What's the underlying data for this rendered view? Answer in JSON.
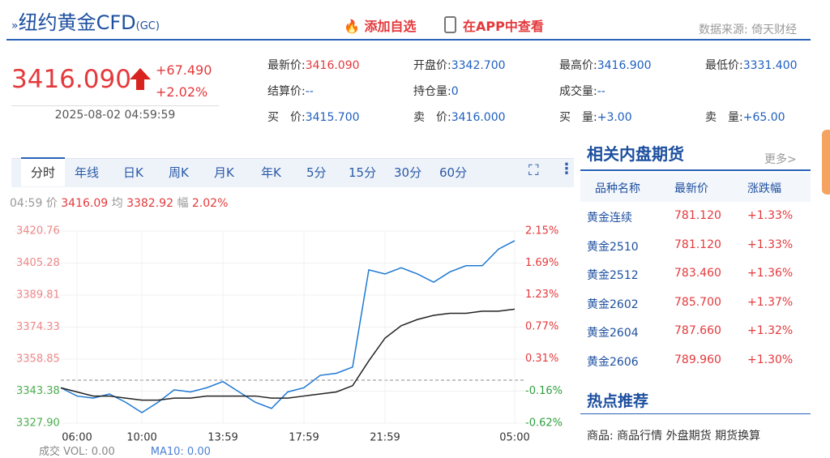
{
  "header": {
    "title": "纽约黄金CFD",
    "code": "(GC)",
    "add_watch": "添加自选",
    "app_view": "在APP中查看",
    "source": "数据来源: 倚天财经"
  },
  "quote": {
    "price": "3416.090",
    "change": "+67.490",
    "change_pct": "+2.02%",
    "time": "2025-08-02 04:59:59"
  },
  "fields": [
    [
      "最新价:",
      "3416.090"
    ],
    [
      "开盘价:",
      "3342.700"
    ],
    [
      "最高价:",
      "3416.900"
    ],
    [
      "最低价:",
      "3331.400"
    ],
    [
      "结算价:",
      "--"
    ],
    [
      "持仓量:",
      "0"
    ],
    [
      "成交量:",
      "--"
    ],
    [
      "买　价:",
      "3415.700"
    ],
    [
      "卖　价:",
      "3416.000"
    ],
    [
      "买　量:",
      "+3.00"
    ],
    [
      "卖　量:",
      "+65.00"
    ]
  ],
  "tabs": [
    "分时",
    "年线",
    "日K",
    "周K",
    "月K",
    "年K",
    "5分",
    "15分",
    "30分",
    "60分"
  ],
  "info": {
    "time": "04:59",
    "price_label": "价",
    "price": "3416.09",
    "avg_label": "均",
    "avg": "3382.92",
    "amp_label": "幅",
    "amp": "2.02%"
  },
  "chart_data": {
    "type": "line",
    "categories": [
      null,
      "06:00",
      null,
      null,
      null,
      "10:00",
      null,
      null,
      null,
      null,
      "13:59",
      null,
      null,
      null,
      null,
      "17:59",
      null,
      null,
      null,
      null,
      "21:59",
      null,
      null,
      null,
      null,
      null,
      null,
      null,
      "05:00"
    ],
    "series": [
      {
        "color": "#1e78d2",
        "values": [
          3345,
          3341,
          3340,
          3342,
          3338,
          3333,
          3338,
          3344,
          3343,
          3345,
          3348,
          3343,
          3338,
          3335,
          3343,
          3345,
          3351,
          3352,
          3355,
          3402,
          3400,
          3403,
          3400,
          3396,
          3401,
          3404,
          3404,
          3412,
          3416.09
        ]
      },
      {
        "color": "#222222",
        "values": [
          3345,
          3343,
          3341,
          3341,
          3340,
          3339,
          3339,
          3340,
          3340,
          3341,
          3341,
          3341,
          3341,
          3340,
          3340,
          3341,
          3342,
          3343,
          3346,
          3358,
          3369,
          3375,
          3378,
          3380,
          3381,
          3381,
          3382,
          3382,
          3383
        ]
      }
    ],
    "ylim": [
      3327.9,
      3420.76
    ],
    "yticks": [
      3420.76,
      3405.28,
      3389.81,
      3374.33,
      3358.85,
      3343.38,
      {
        "value": 3327.9,
        "label": "3327.90"
      }
    ],
    "y2lim": [
      -0.62,
      2.15
    ],
    "y2ticks": [
      {
        "value": 2.15,
        "label": "2.15%"
      },
      {
        "value": 1.69,
        "label": "1.69%"
      },
      {
        "value": 1.23,
        "label": "1.23%"
      },
      {
        "value": 0.77,
        "label": "0.77%"
      },
      {
        "value": 0.31,
        "label": "0.31%"
      },
      {
        "value": -0.16,
        "label": "-0.16%"
      },
      {
        "value": -0.62,
        "label": "-0.62%"
      }
    ],
    "grid": true
  },
  "volume": {
    "label": "成交",
    "vol": "VOL: 0.00",
    "ma": "MA10: 0.00"
  },
  "related": {
    "title": "相关内盘期货",
    "more": "更多>",
    "columns": [
      "品种名称",
      "最新价",
      "涨跌幅"
    ],
    "rows": [
      [
        "黄金连续",
        "781.120",
        "+1.33%"
      ],
      [
        "黄金2510",
        "781.120",
        "+1.33%"
      ],
      [
        "黄金2512",
        "783.460",
        "+1.36%"
      ],
      [
        "黄金2602",
        "785.700",
        "+1.37%"
      ],
      [
        "黄金2604",
        "787.660",
        "+1.32%"
      ],
      [
        "黄金2606",
        "789.960",
        "+1.30%"
      ]
    ]
  },
  "hot": {
    "title": "热点推荐",
    "label": "商品:",
    "links": [
      "商品行情",
      "外盘期货",
      "期货换算"
    ]
  }
}
